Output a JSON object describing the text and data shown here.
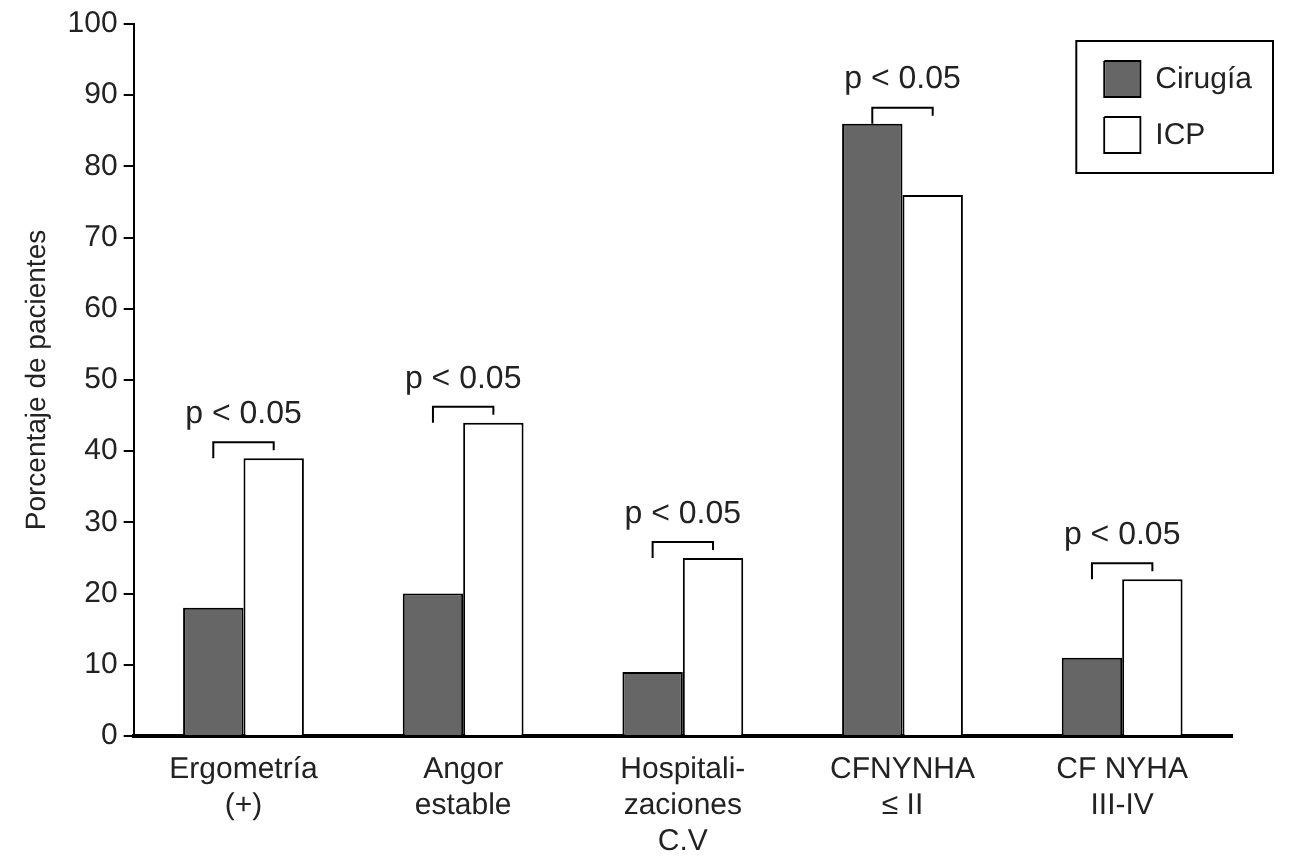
{
  "chart_data": {
    "type": "bar",
    "ylabel": "Porcentaje de pacientes",
    "categories": [
      "Ergometría\n(+)",
      "Angor\nestable",
      "Hospitali-\nzaciones\nC.V",
      "CFNYNHA\n≤ II",
      "CF NYHA\nIII-IV"
    ],
    "series": [
      {
        "name": "Cirugía",
        "color": "#666666",
        "values": [
          18,
          20,
          9,
          86,
          11
        ]
      },
      {
        "name": "ICP",
        "color": "#ffffff",
        "values": [
          39,
          44,
          25,
          76,
          22
        ]
      }
    ],
    "ylim": [
      0,
      100
    ],
    "yticks": [
      0,
      10,
      20,
      30,
      40,
      50,
      60,
      70,
      80,
      90,
      100
    ],
    "grid": false,
    "legend": "top right",
    "annotations": [
      "p < 0.05",
      "p < 0.05",
      "p < 0.05",
      "p < 0.05",
      "p < 0.05"
    ]
  }
}
